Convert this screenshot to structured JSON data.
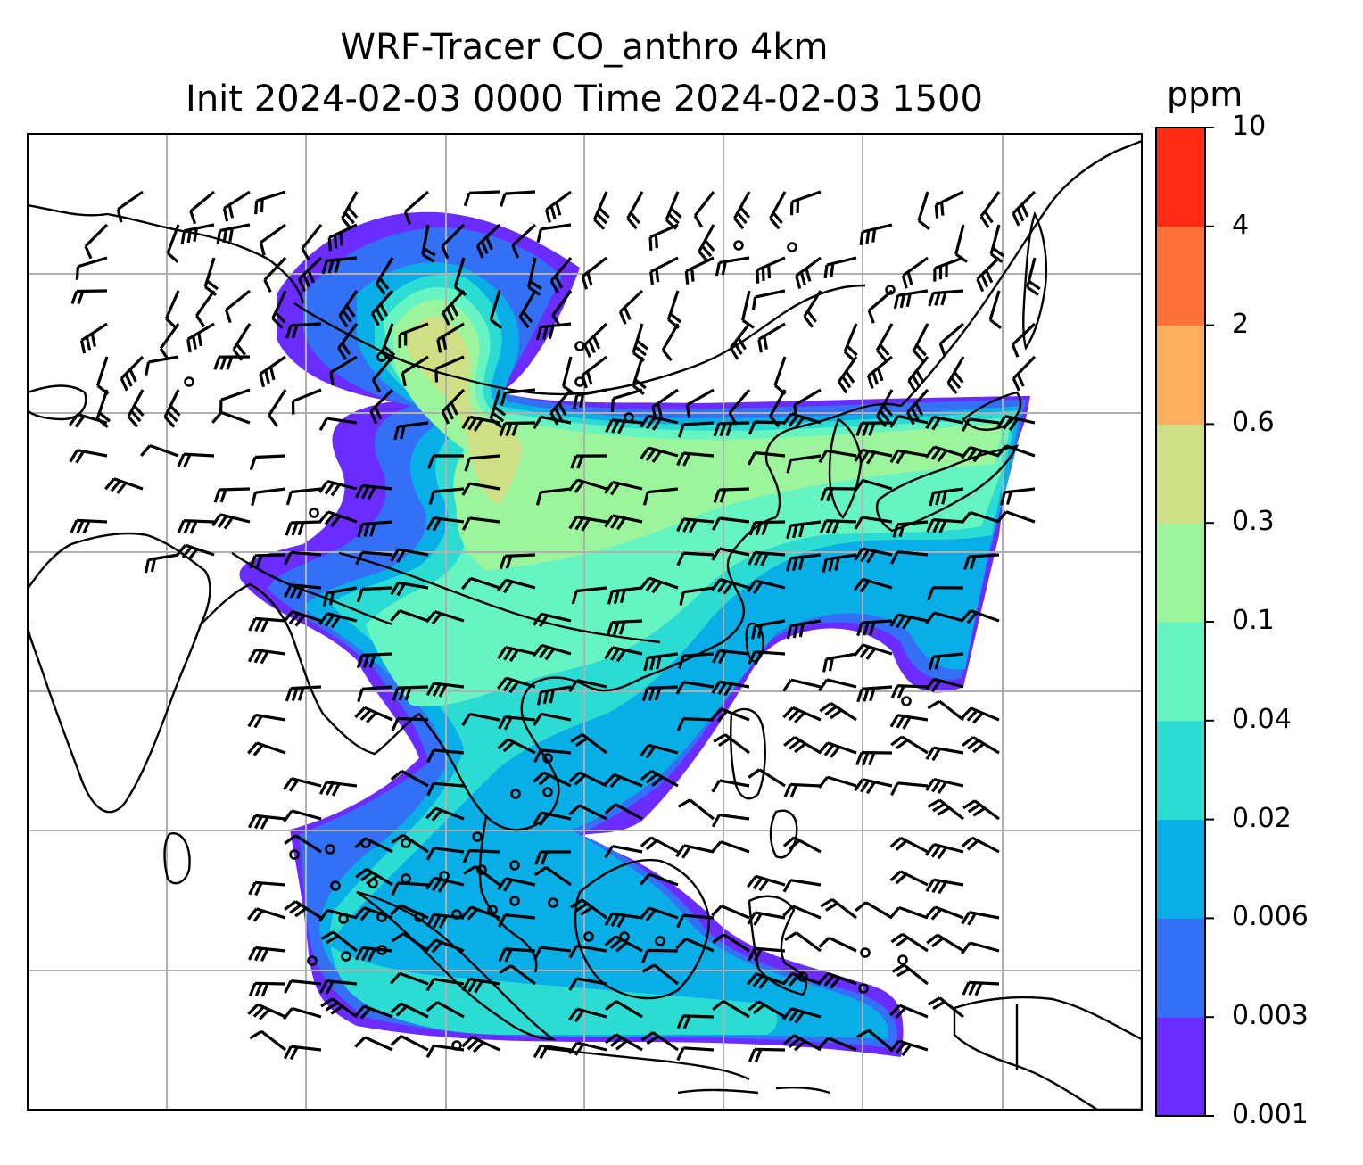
{
  "title_line1": "WRF-Tracer CO_anthro 4km",
  "title_line2": "Init 2024-02-03 0000 Time 2024-02-03 1500",
  "colorbar": {
    "units": "ppm",
    "ticks": [
      "0.001",
      "0.003",
      "0.006",
      "0.02",
      "0.04",
      "0.1",
      "0.3",
      "0.6",
      "2",
      "4",
      "10"
    ],
    "colors": [
      "#6a2cff",
      "#3370f5",
      "#0aaee6",
      "#2cdcd2",
      "#66f4c2",
      "#9cf59c",
      "#cfdf86",
      "#fdaf60",
      "#ff7138",
      "#ff2a14"
    ]
  },
  "legend_colors": {
    "coastline": "#000000",
    "gridline": "#b0b0b0",
    "wind_barb": "#000000"
  }
}
